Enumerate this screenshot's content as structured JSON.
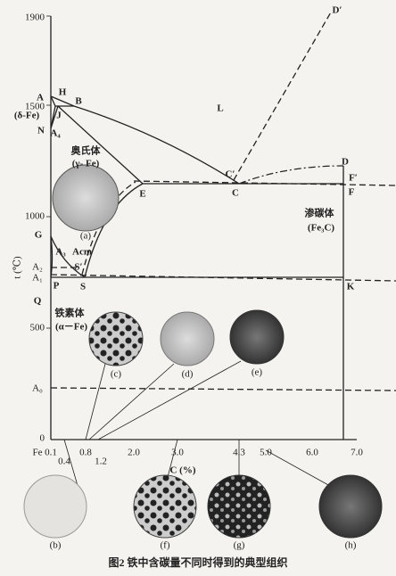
{
  "title": "图2  铁中含碳量不同时得到的典型组织",
  "axes": {
    "y_label": "t (℃)",
    "x_label": "C (%)",
    "y_ticks": [
      "1900",
      "1500",
      "1000",
      "500",
      "0"
    ],
    "x_ticks": [
      "Fe",
      "0.1",
      "0.4",
      "0.8",
      "1.2",
      "2.0",
      "3.0",
      "4.3",
      "5.0",
      "6.0",
      "7.0"
    ],
    "y_marks": [
      "A₂",
      "A₁",
      "A₀"
    ]
  },
  "points": [
    "A",
    "H",
    "B",
    "J",
    "N",
    "L",
    "D′",
    "C′",
    "C",
    "D",
    "F′",
    "F",
    "E",
    "G",
    "S′",
    "S",
    "P",
    "Q",
    "K"
  ],
  "phases": [
    "(δ-Fe)",
    "A₄",
    "奥氏体",
    "(γ- Fe)",
    "A₃",
    "Acm",
    "渗碳体",
    "(Fe₃C)",
    "铁素体",
    "(α－Fe)"
  ],
  "micrographs": [
    "(a)",
    "(b)",
    "(c)",
    "(d)",
    "(e)",
    "(f)",
    "(g)",
    "(h)"
  ]
}
